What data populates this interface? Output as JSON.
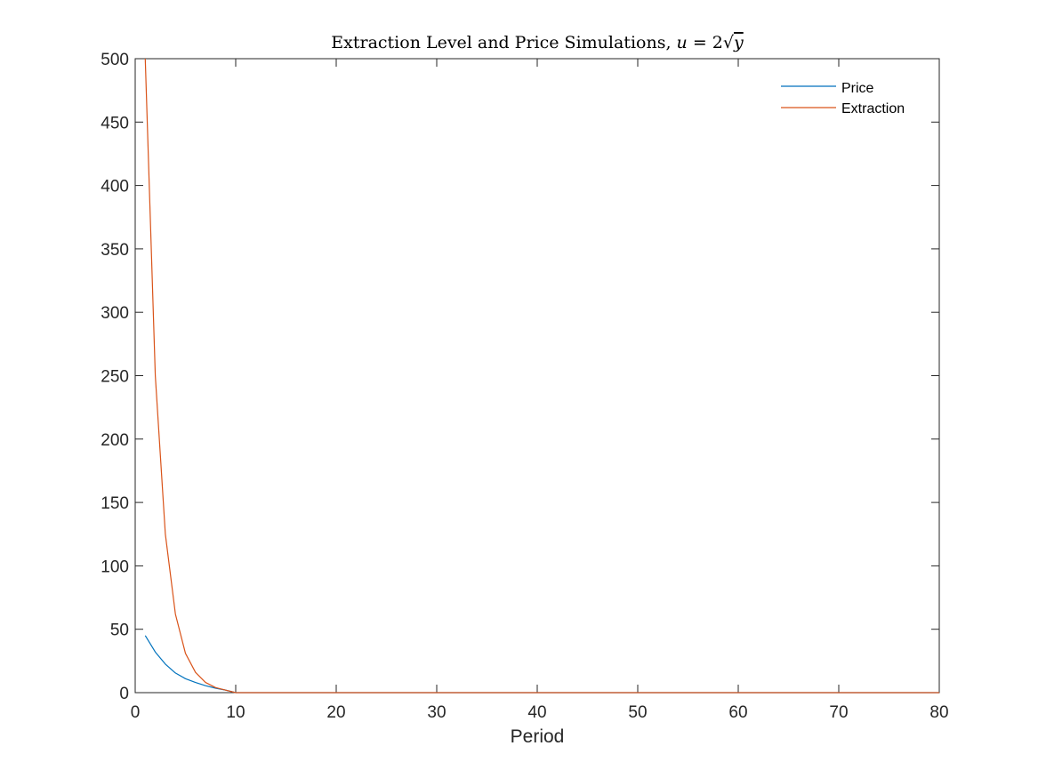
{
  "chart_data": {
    "type": "line",
    "title": "Extraction Level and Price Simulations, ",
    "title_math": {
      "var": "u",
      "eq": " = 2",
      "radicand": "y"
    },
    "xlabel": "Period",
    "ylabel": "",
    "xlim": [
      0,
      80
    ],
    "ylim": [
      0,
      500
    ],
    "xticks": [
      0,
      10,
      20,
      30,
      40,
      50,
      60,
      70,
      80
    ],
    "yticks": [
      0,
      50,
      100,
      150,
      200,
      250,
      300,
      350,
      400,
      450,
      500
    ],
    "grid": false,
    "legend_position": "top-right",
    "series": [
      {
        "name": "Price",
        "color": "#0072BD",
        "x": [
          1,
          2,
          3,
          4,
          5,
          6,
          7,
          8,
          9,
          10,
          20,
          30,
          40,
          50,
          60,
          70,
          80
        ],
        "y": [
          45,
          32,
          22.5,
          15.5,
          11,
          8,
          5.5,
          3.5,
          2,
          0,
          0,
          0,
          0,
          0,
          0,
          0,
          0
        ]
      },
      {
        "name": "Extraction",
        "color": "#D95319",
        "x": [
          1,
          2,
          3,
          4,
          5,
          6,
          7,
          8,
          9,
          10,
          20,
          30,
          40,
          50,
          60,
          70,
          80
        ],
        "y": [
          500,
          250,
          125,
          62,
          31,
          16,
          8,
          4,
          2,
          0,
          0,
          0,
          0,
          0,
          0,
          0,
          0
        ]
      }
    ]
  }
}
